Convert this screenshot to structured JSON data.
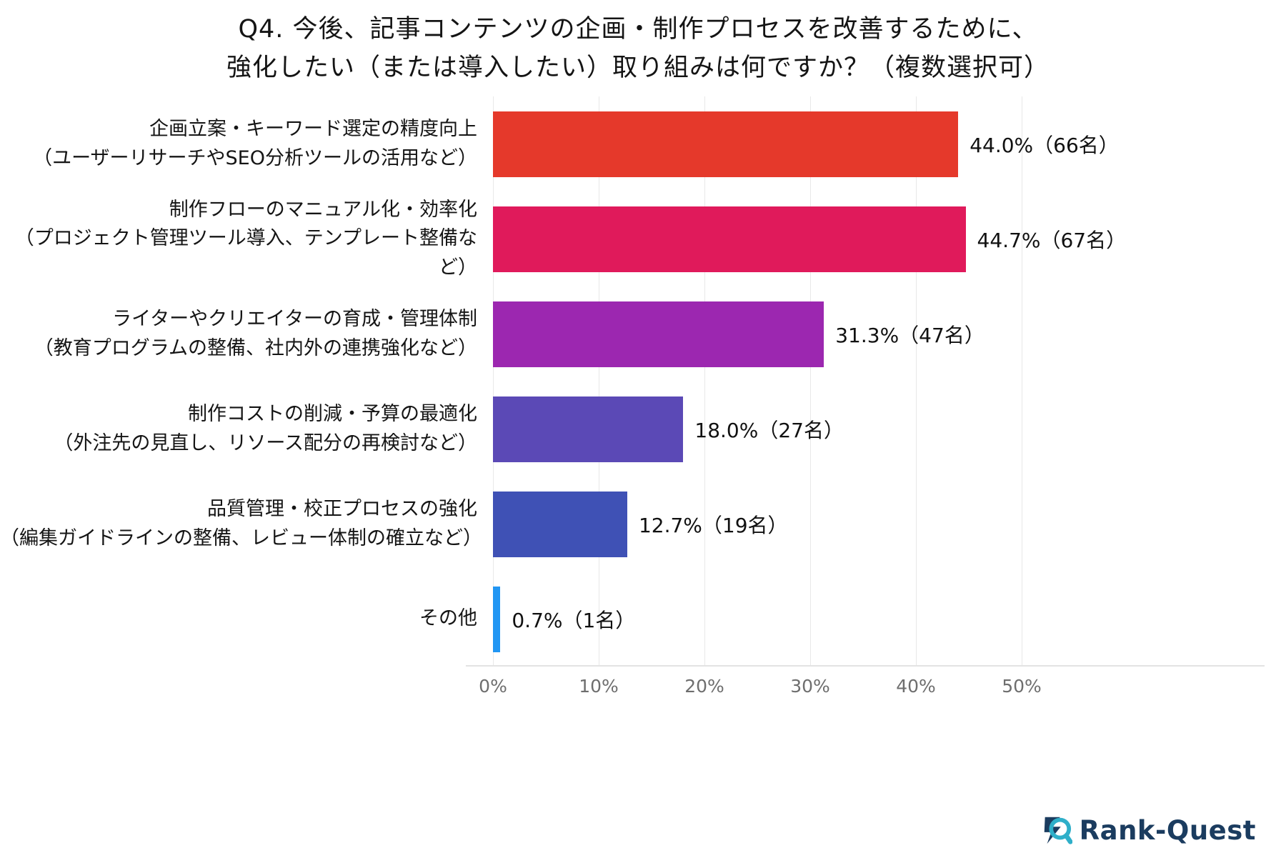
{
  "title": {
    "line1": "Q4. 今後、記事コンテンツの企画・制作プロセスを改善するために、",
    "line2": "強化したい（または導入したい）取り組みは何ですか？（複数選択可）"
  },
  "chart_data": {
    "type": "bar",
    "orientation": "horizontal",
    "title": "Q4. 今後、記事コンテンツの企画・制作プロセスを改善するために、強化したい（または導入したい）取り組みは何ですか？（複数選択可）",
    "xlabel": "",
    "ylabel": "",
    "xlim": [
      0,
      50
    ],
    "x_ticks": [
      "0%",
      "10%",
      "20%",
      "30%",
      "40%",
      "50%"
    ],
    "grid": true,
    "categories": [
      "企画立案・キーワード選定の精度向上（ユーザーリサーチやSEO分析ツールの活用など）",
      "制作フローのマニュアル化・効率化（プロジェクト管理ツール導入、テンプレート整備など）",
      "ライターやクリエイターの育成・管理体制（教育プログラムの整備、社内外の連携強化など）",
      "制作コストの削減・予算の最適化（外注先の見直し、リソース配分の再検討など）",
      "品質管理・校正プロセスの強化（編集ガイドラインの整備、レビュー体制の確立など）",
      "その他"
    ],
    "values": [
      44.0,
      44.7,
      31.3,
      18.0,
      12.7,
      0.7
    ],
    "counts": [
      66,
      67,
      47,
      27,
      19,
      1
    ],
    "rows": [
      {
        "label_lines": [
          "企画立案・キーワード選定の精度向上",
          "（ユーザーリサーチやSEO分析ツールの活用など）"
        ],
        "value": 44.0,
        "value_label": "44.0%（66名）",
        "color": "#E5392B"
      },
      {
        "label_lines": [
          "制作フローのマニュアル化・効率化",
          "（プロジェクト管理ツール導入、テンプレート整備など）"
        ],
        "value": 44.7,
        "value_label": "44.7%（67名）",
        "color": "#E01A5B"
      },
      {
        "label_lines": [
          "ライターやクリエイターの育成・管理体制",
          "（教育プログラムの整備、社内外の連携強化など）"
        ],
        "value": 31.3,
        "value_label": "31.3%（47名）",
        "color": "#9C27B0"
      },
      {
        "label_lines": [
          "制作コストの削減・予算の最適化",
          "（外注先の見直し、リソース配分の再検討など）"
        ],
        "value": 18.0,
        "value_label": "18.0%（27名）",
        "color": "#5B49B6"
      },
      {
        "label_lines": [
          "品質管理・校正プロセスの強化",
          "（編集ガイドラインの整備、レビュー体制の確立など）"
        ],
        "value": 12.7,
        "value_label": "12.7%（19名）",
        "color": "#3F51B5"
      },
      {
        "label_lines": [
          "その他"
        ],
        "value": 0.7,
        "value_label": "0.7%（1名）",
        "color": "#2196F3"
      }
    ]
  },
  "logo": {
    "text": "Rank-Quest",
    "brand_navy": "#1B3C5F",
    "brand_teal": "#2FAFC9"
  }
}
